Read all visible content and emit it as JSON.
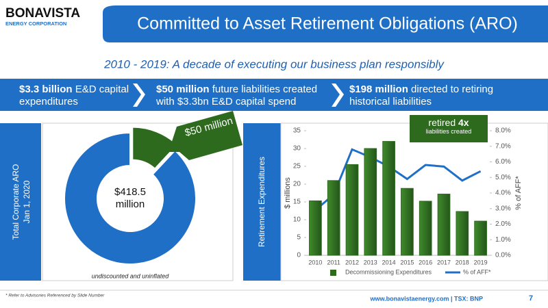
{
  "header": {
    "logo": "BONAVISTA",
    "logo_sub": "ENERGY CORPORATION",
    "title": "Committed to Asset Retirement Obligations (ARO)"
  },
  "subtitle": "2010 - 2019: A decade of executing our business plan responsibly",
  "banner": [
    {
      "bold": "$3.3 billion",
      "text": "E&D capital expenditures"
    },
    {
      "bold": "$50 million",
      "text": "future liabilities created with $3.3bn E&D capital spend"
    },
    {
      "bold": "$198 million",
      "text": "directed to retiring historical liabilities"
    }
  ],
  "chart_data": [
    {
      "type": "pie",
      "donut": true,
      "panel_label": [
        "Total Corporate ARO",
        "Jan 1, 2020"
      ],
      "values": [
        50,
        368.5
      ],
      "colors": [
        "#2d6a1e",
        "#1f6fc6"
      ],
      "value_labels": [
        "$50 million",
        null
      ],
      "center_label": "$418.5 million",
      "note": "undiscounted and uninflated"
    },
    {
      "type": "bar",
      "panel_label": "Retirement Expenditures",
      "categories": [
        "2010",
        "2011",
        "2012",
        "2013",
        "2014",
        "2015",
        "2016",
        "2017",
        "2018",
        "2019"
      ],
      "series": [
        {
          "name": "Decommissioning Expenditures",
          "type": "bar",
          "color": "#2d6a1e",
          "values": [
            15.3,
            21,
            25.5,
            30,
            32,
            18.8,
            15.2,
            17.2,
            12.3,
            9.6
          ]
        },
        {
          "name": "% of AFF*",
          "type": "line",
          "axis": "y2",
          "color": "#1f6fc6",
          "values": [
            2.9,
            3.9,
            6.8,
            6.3,
            5.7,
            4.9,
            5.8,
            5.7,
            4.8,
            5.4
          ]
        }
      ],
      "ylabel": "$ millions",
      "y2label": "% of AFF*",
      "ylim": [
        0,
        35
      ],
      "yticks": [
        0,
        5,
        10,
        15,
        20,
        25,
        30,
        35
      ],
      "y2lim": [
        0,
        8
      ],
      "y2ticks": [
        {
          "value": 0,
          "label": "0.0%"
        },
        {
          "value": 1,
          "label": "1.0%"
        },
        {
          "value": 2,
          "label": "2.0%"
        },
        {
          "value": 3,
          "label": "3.0%"
        },
        {
          "value": 4,
          "label": "4.0%"
        },
        {
          "value": 5,
          "label": "5.0%"
        },
        {
          "value": 6,
          "label": "6.0%"
        },
        {
          "value": 7,
          "label": "7.0%"
        },
        {
          "value": 8,
          "label": "8.0%"
        }
      ],
      "legend": "bottom",
      "annotation": {
        "text": "retired",
        "bold": "4x",
        "subtext": "liabilities created"
      }
    }
  ],
  "footer": {
    "note": "* Refer to Advisories Referenced by Slide Number",
    "site": "www.bonavistaenergy.com | TSX: BNP",
    "page": "7"
  }
}
